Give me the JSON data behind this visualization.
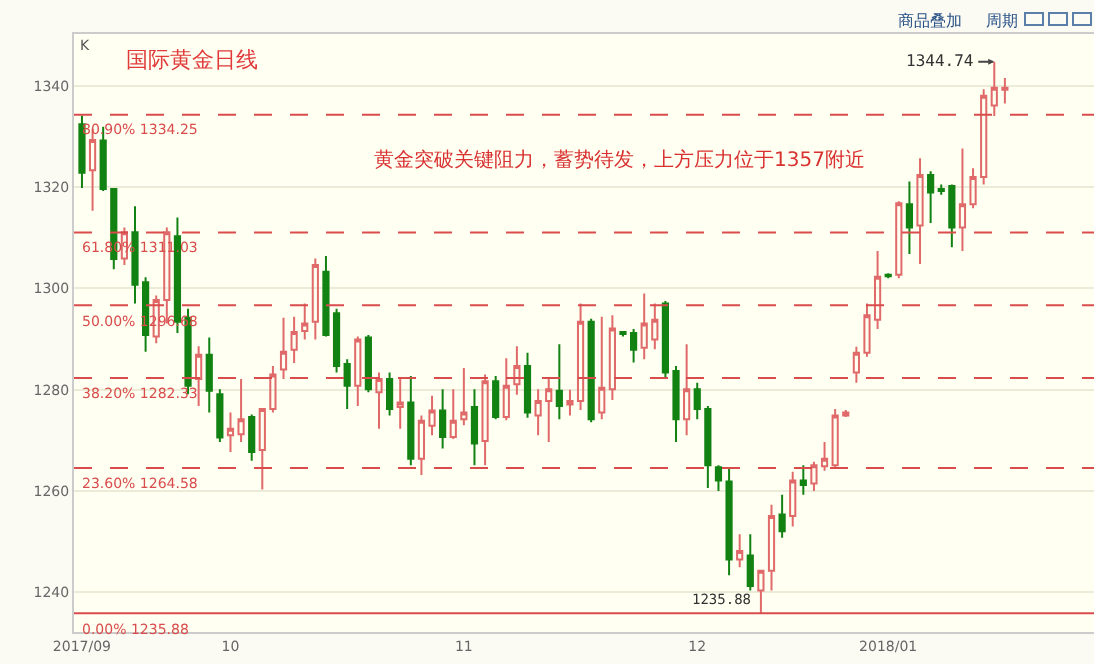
{
  "chart_data": {
    "type": "candlestick",
    "title": "国际黄金日线",
    "categories": [
      "2017/09",
      null,
      null,
      null,
      null,
      null,
      null,
      null,
      null,
      null,
      null,
      null,
      null,
      null,
      "10",
      null,
      null,
      null,
      null,
      null,
      null,
      null,
      null,
      null,
      null,
      null,
      null,
      null,
      null,
      null,
      null,
      null,
      null,
      null,
      null,
      null,
      "11",
      null,
      null,
      null,
      null,
      null,
      null,
      null,
      null,
      null,
      null,
      null,
      null,
      null,
      null,
      null,
      null,
      null,
      null,
      null,
      null,
      null,
      "12",
      null,
      null,
      null,
      null,
      null,
      null,
      null,
      null,
      null,
      null,
      null,
      null,
      null,
      null,
      null,
      null,
      null,
      "2018/01",
      null,
      null,
      null,
      null,
      null,
      null,
      null,
      null,
      null,
      null,
      null
    ],
    "ohlc": [
      [
        1332.4,
        1334.1,
        1319.8,
        1322.8
      ],
      [
        1323.3,
        1331.5,
        1315.3,
        1329.3
      ],
      [
        1329.2,
        1331.9,
        1319.2,
        1319.6
      ],
      [
        1319.6,
        1319.8,
        1303.8,
        1305.8
      ],
      [
        1305.9,
        1312.0,
        1304.6,
        1311.1
      ],
      [
        1311.1,
        1316.2,
        1297.0,
        1300.7
      ],
      [
        1301.2,
        1302.2,
        1287.5,
        1290.8
      ],
      [
        1290.5,
        1298.6,
        1289.2,
        1297.7
      ],
      [
        1297.7,
        1312.0,
        1293.1,
        1311.1
      ],
      [
        1310.3,
        1314.0,
        1291.2,
        1293.4
      ],
      [
        1294.2,
        1296.0,
        1279.1,
        1280.8
      ],
      [
        1282.1,
        1288.6,
        1276.8,
        1286.9
      ],
      [
        1286.9,
        1290.3,
        1275.5,
        1279.8
      ],
      [
        1279.1,
        1280.1,
        1269.7,
        1270.6
      ],
      [
        1271.0,
        1275.5,
        1267.7,
        1272.3
      ],
      [
        1271.2,
        1282.1,
        1269.7,
        1274.2
      ],
      [
        1274.6,
        1275.1,
        1266.0,
        1267.7
      ],
      [
        1268.1,
        1276.2,
        1260.3,
        1276.2
      ],
      [
        1276.2,
        1284.7,
        1275.5,
        1283.0
      ],
      [
        1284.0,
        1294.2,
        1282.1,
        1287.5
      ],
      [
        1287.9,
        1294.4,
        1285.3,
        1291.4
      ],
      [
        1291.6,
        1297.0,
        1289.9,
        1293.1
      ],
      [
        1293.4,
        1305.9,
        1289.9,
        1304.6
      ],
      [
        1303.3,
        1306.4,
        1290.5,
        1290.8
      ],
      [
        1295.1,
        1296.0,
        1283.4,
        1284.7
      ],
      [
        1285.1,
        1286.0,
        1276.2,
        1280.8
      ],
      [
        1280.8,
        1290.5,
        1276.8,
        1289.9
      ],
      [
        1290.3,
        1290.8,
        1279.5,
        1280.1
      ],
      [
        1279.5,
        1283.4,
        1272.3,
        1282.1
      ],
      [
        1282.1,
        1283.4,
        1274.9,
        1276.2
      ],
      [
        1276.6,
        1282.1,
        1272.3,
        1277.5
      ],
      [
        1277.5,
        1282.7,
        1265.1,
        1266.4
      ],
      [
        1266.4,
        1274.9,
        1263.2,
        1273.9
      ],
      [
        1272.9,
        1278.8,
        1271.0,
        1275.9
      ],
      [
        1275.9,
        1280.1,
        1268.4,
        1270.7
      ],
      [
        1270.7,
        1280.1,
        1270.3,
        1273.9
      ],
      [
        1274.2,
        1284.3,
        1273.0,
        1275.5
      ],
      [
        1276.6,
        1280.1,
        1265.1,
        1269.4
      ],
      [
        1269.9,
        1283.0,
        1265.1,
        1281.7
      ],
      [
        1281.7,
        1282.7,
        1274.2,
        1274.6
      ],
      [
        1274.6,
        1286.2,
        1274.0,
        1280.8
      ],
      [
        1281.1,
        1288.6,
        1279.0,
        1284.7
      ],
      [
        1284.7,
        1287.3,
        1274.5,
        1275.5
      ],
      [
        1274.9,
        1280.1,
        1271.0,
        1277.8
      ],
      [
        1277.8,
        1282.1,
        1269.7,
        1280.1
      ],
      [
        1279.8,
        1289.0,
        1274.2,
        1276.8
      ],
      [
        1277.1,
        1280.0,
        1274.9,
        1277.8
      ],
      [
        1277.8,
        1297.0,
        1276.0,
        1293.4
      ],
      [
        1293.4,
        1294.0,
        1273.6,
        1274.2
      ],
      [
        1275.5,
        1294.4,
        1274.2,
        1280.4
      ],
      [
        1280.1,
        1294.7,
        1278.0,
        1292.1
      ],
      [
        1291.4,
        1291.6,
        1290.5,
        1291.0
      ],
      [
        1291.2,
        1292.0,
        1285.4,
        1287.9
      ],
      [
        1288.3,
        1299.0,
        1286.0,
        1293.1
      ],
      [
        1289.9,
        1297.0,
        1288.0,
        1293.8
      ],
      [
        1297.0,
        1297.5,
        1282.5,
        1283.4
      ],
      [
        1283.7,
        1284.7,
        1269.7,
        1274.2
      ],
      [
        1274.2,
        1289.0,
        1271.0,
        1280.1
      ],
      [
        1280.1,
        1281.4,
        1274.2,
        1276.2
      ],
      [
        1276.2,
        1276.8,
        1260.6,
        1265.1
      ],
      [
        1264.7,
        1265.1,
        1260.0,
        1262.1
      ],
      [
        1261.9,
        1264.5,
        1243.4,
        1246.5
      ],
      [
        1246.5,
        1251.5,
        1245.0,
        1248.2
      ],
      [
        1247.3,
        1251.5,
        1240.4,
        1241.3
      ],
      [
        1240.4,
        1244.3,
        1235.88,
        1244.3
      ],
      [
        1244.3,
        1257.3,
        1240.4,
        1255.1
      ],
      [
        1255.4,
        1259.3,
        1250.8,
        1252.1
      ],
      [
        1255.1,
        1263.8,
        1253.0,
        1262.1
      ],
      [
        1262.1,
        1265.1,
        1259.3,
        1261.2
      ],
      [
        1261.5,
        1265.8,
        1260.0,
        1265.1
      ],
      [
        1264.9,
        1269.7,
        1264.0,
        1266.4
      ],
      [
        1265.1,
        1276.2,
        1264.5,
        1274.9
      ],
      [
        1274.9,
        1276.0,
        1274.6,
        1275.5
      ],
      [
        1283.4,
        1288.5,
        1281.4,
        1287.3
      ],
      [
        1287.3,
        1297.0,
        1286.5,
        1294.7
      ],
      [
        1293.8,
        1307.4,
        1292.0,
        1302.3
      ],
      [
        1302.7,
        1303.0,
        1302.0,
        1302.4
      ],
      [
        1302.7,
        1317.2,
        1302.0,
        1316.8
      ],
      [
        1316.6,
        1321.1,
        1306.8,
        1312.0
      ],
      [
        1312.4,
        1325.7,
        1304.8,
        1322.4
      ],
      [
        1322.4,
        1323.1,
        1312.9,
        1318.9
      ],
      [
        1319.6,
        1320.5,
        1318.5,
        1319.2
      ],
      [
        1320.2,
        1320.5,
        1308.1,
        1312.0
      ],
      [
        1312.0,
        1327.6,
        1307.4,
        1316.6
      ],
      [
        1316.6,
        1323.7,
        1315.8,
        1322.0
      ],
      [
        1322.0,
        1339.3,
        1320.5,
        1338.0
      ],
      [
        1336.1,
        1344.74,
        1334.0,
        1339.6
      ],
      [
        1339.2,
        1341.5,
        1336.5,
        1339.6
      ]
    ],
    "colors": [
      "#128212",
      "#e06a6a",
      "#128212",
      "#128212",
      "#e06a6a",
      "#128212",
      "#128212",
      "#e06a6a",
      "#e06a6a",
      "#128212",
      "#128212",
      "#e06a6a",
      "#128212",
      "#128212",
      "#e06a6a",
      "#e06a6a",
      "#128212",
      "#e06a6a",
      "#e06a6a",
      "#e06a6a",
      "#e06a6a",
      "#e06a6a",
      "#e06a6a",
      "#128212",
      "#128212",
      "#128212",
      "#e06a6a",
      "#128212",
      "#e06a6a",
      "#128212",
      "#e06a6a",
      "#128212",
      "#e06a6a",
      "#e06a6a",
      "#128212",
      "#e06a6a",
      "#e06a6a",
      "#128212",
      "#e06a6a",
      "#128212",
      "#e06a6a",
      "#e06a6a",
      "#128212",
      "#e06a6a",
      "#e06a6a",
      "#128212",
      "#e06a6a",
      "#e06a6a",
      "#128212",
      "#e06a6a",
      "#e06a6a",
      "#128212",
      "#128212",
      "#e06a6a",
      "#e06a6a",
      "#128212",
      "#128212",
      "#e06a6a",
      "#128212",
      "#128212",
      "#128212",
      "#128212",
      "#e06a6a",
      "#128212",
      "#e06a6a",
      "#e06a6a",
      "#128212",
      "#e06a6a",
      "#128212",
      "#e06a6a",
      "#e06a6a",
      "#e06a6a",
      "#e06a6a",
      "#e06a6a",
      "#e06a6a",
      "#e06a6a",
      "#128212",
      "#e06a6a",
      "#128212",
      "#e06a6a",
      "#128212",
      "#128212",
      "#128212",
      "#e06a6a",
      "#e06a6a",
      "#e06a6a",
      "#e06a6a",
      "#e06a6a"
    ],
    "ylim": [
      1232.2,
      1350.2
    ],
    "yticks": [
      1240,
      1260,
      1280,
      1300,
      1320,
      1340
    ],
    "grid": "y",
    "ref_lines": [
      {
        "axis": "y",
        "value": 1334.25,
        "label": "80.90% 1334.25",
        "color": "#d94c4c",
        "line_style": "dashed"
      },
      {
        "axis": "y",
        "value": 1311.03,
        "label": "61.80% 1311.03",
        "color": "#d94c4c",
        "line_style": "dashed"
      },
      {
        "axis": "y",
        "value": 1296.68,
        "label": "50.00% 1296.68",
        "color": "#d94c4c",
        "line_style": "dashed"
      },
      {
        "axis": "y",
        "value": 1282.33,
        "label": "38.20% 1282.33",
        "color": "#d94c4c",
        "line_style": "dashed"
      },
      {
        "axis": "y",
        "value": 1264.58,
        "label": "23.60% 1264.58",
        "color": "#d94c4c",
        "line_style": "dashed"
      },
      {
        "axis": "y",
        "value": 1235.88,
        "label": "0.00% 1235.88",
        "color": "#d94c4c",
        "line_style": "solid"
      }
    ],
    "annotations": [
      "K",
      "商品叠加",
      "周期",
      "黄金突破关键阻力，蓄势待发，上方压力位于1357附近",
      "1344.74",
      {
        "text": "1235.88",
        "y": 1235.88
      }
    ]
  }
}
